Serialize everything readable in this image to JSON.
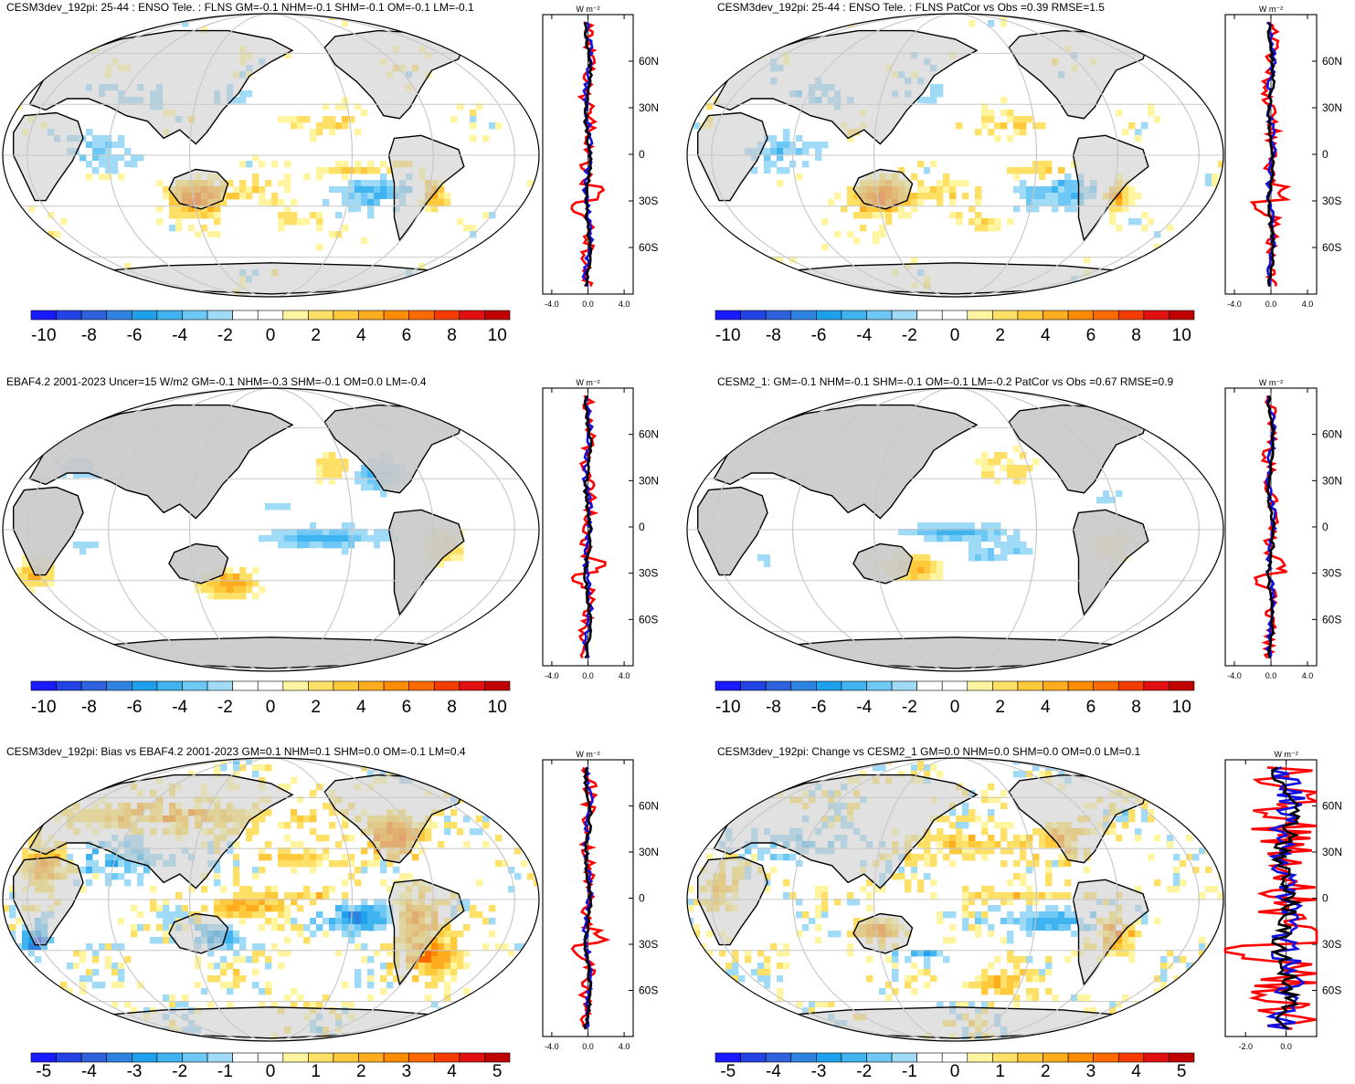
{
  "colors": {
    "palette": [
      "#1a1aff",
      "#2343e6",
      "#2f62dc",
      "#2e82e0",
      "#1ea0ec",
      "#3fb4f1",
      "#6ec8f5",
      "#9fdaf6",
      "#ffffff",
      "#ffffff",
      "#fff5a0",
      "#ffe066",
      "#ffc93c",
      "#ffad1f",
      "#ff8c00",
      "#ff6a00",
      "#f53c00",
      "#e21010",
      "#c00000"
    ],
    "land": "#c9c9c9",
    "grid": "#c8c8c8",
    "series_red": "#ff0000",
    "series_blue": "#1010e0",
    "series_black": "#000000"
  },
  "chart_data": [
    {
      "type": "heatmap",
      "title": "CESM3dev_192pi: 25-44 : ENSO Tele. : FLNS GM=-0.1 NHM=-0.1 SHM=-0.1 OM=-0.1 LM=-0.1",
      "colorbar": {
        "levels": [
          -10,
          -8,
          -6,
          -4,
          -2,
          0,
          2,
          4,
          6,
          8,
          10
        ],
        "labels": [
          "-10",
          "-8",
          "-6",
          "-4",
          "-2",
          "0",
          "2",
          "4",
          "6",
          "8",
          "10"
        ]
      },
      "zonal_profile": {
        "unit": "W m⁻²",
        "xticks": [
          "-4.0",
          "0.0",
          "4.0"
        ],
        "yticks": [
          "60N",
          "30N",
          "0",
          "30S",
          "60S"
        ],
        "xlim": [
          -5,
          5
        ]
      }
    },
    {
      "type": "heatmap",
      "title": "CESM3dev_192pi: 25-44 : ENSO Tele. : FLNS PatCor vs Obs =0.39 RMSE=1.5",
      "colorbar": {
        "levels": [
          -10,
          -8,
          -6,
          -4,
          -2,
          0,
          2,
          4,
          6,
          8,
          10
        ],
        "labels": [
          "-10",
          "-8",
          "-6",
          "-4",
          "-2",
          "0",
          "2",
          "4",
          "6",
          "8",
          "10"
        ]
      },
      "zonal_profile": {
        "unit": "W m⁻²",
        "xticks": [
          "-4.0",
          "0.0",
          "4.0"
        ],
        "yticks": [
          "60N",
          "30N",
          "0",
          "30S",
          "60S"
        ],
        "xlim": [
          -5,
          5
        ]
      }
    },
    {
      "type": "heatmap",
      "title": "EBAF4.2 2001-2023 Uncer=15 W/m2 GM=-0.1 NHM=-0.3 SHM=-0.1 OM=0.0 LM=-0.4",
      "colorbar": {
        "levels": [
          -10,
          -8,
          -6,
          -4,
          -2,
          0,
          2,
          4,
          6,
          8,
          10
        ],
        "labels": [
          "-10",
          "-8",
          "-6",
          "-4",
          "-2",
          "0",
          "2",
          "4",
          "6",
          "8",
          "10"
        ]
      },
      "zonal_profile": {
        "unit": "W m⁻²",
        "xticks": [
          "-4.0",
          "0.0",
          "4.0"
        ],
        "yticks": [
          "60N",
          "30N",
          "0",
          "30S",
          "60S"
        ],
        "xlim": [
          -5,
          5
        ]
      }
    },
    {
      "type": "heatmap",
      "title": "CESM2_1: GM=-0.1 NHM=-0.1 SHM=-0.1 OM=-0.1 LM=-0.2 PatCor vs Obs =0.67 RMSE=0.9",
      "colorbar": {
        "levels": [
          -10,
          -8,
          -6,
          -4,
          -2,
          0,
          2,
          4,
          6,
          8,
          10
        ],
        "labels": [
          "-10",
          "-8",
          "-6",
          "-4",
          "-2",
          "0",
          "2",
          "4",
          "6",
          "8",
          "10"
        ]
      },
      "zonal_profile": {
        "unit": "W m⁻²",
        "xticks": [
          "-4.0",
          "0.0",
          "4.0"
        ],
        "yticks": [
          "60N",
          "30N",
          "0",
          "30S",
          "60S"
        ],
        "xlim": [
          -5,
          5
        ]
      }
    },
    {
      "type": "heatmap",
      "title": "CESM3dev_192pi: Bias vs EBAF4.2 2001-2023 GM=0.1 NHM=0.1 SHM=0.0 OM=-0.1 LM=0.4",
      "colorbar": {
        "levels": [
          -5,
          -4,
          -3,
          -2,
          -1,
          0,
          1,
          2,
          3,
          4,
          5
        ],
        "labels": [
          "-5",
          "-4",
          "-3",
          "-2",
          "-1",
          "0",
          "1",
          "2",
          "3",
          "4",
          "5"
        ]
      },
      "zonal_profile": {
        "unit": "W m⁻²",
        "xticks": [
          "-4.0",
          "0.0",
          "4.0"
        ],
        "yticks": [
          "60N",
          "30N",
          "0",
          "30S",
          "60S"
        ],
        "xlim": [
          -5,
          5
        ]
      }
    },
    {
      "type": "heatmap",
      "title": "CESM3dev_192pi: Change vs CESM2_1 GM=0.0 NHM=0.0 SHM=0.0 OM=0.0 LM=0.1",
      "colorbar": {
        "levels": [
          -5,
          -4,
          -3,
          -2,
          -1,
          0,
          1,
          2,
          3,
          4,
          5
        ],
        "labels": [
          "-5",
          "-4",
          "-3",
          "-2",
          "-1",
          "0",
          "1",
          "2",
          "3",
          "4",
          "5"
        ]
      },
      "zonal_profile": {
        "unit": "W m⁻²",
        "xticks": [
          "-2.0",
          "0.0"
        ],
        "yticks": [
          "60N",
          "30N",
          "0",
          "30S",
          "60S"
        ],
        "xlim": [
          -3,
          1.5
        ]
      }
    }
  ]
}
